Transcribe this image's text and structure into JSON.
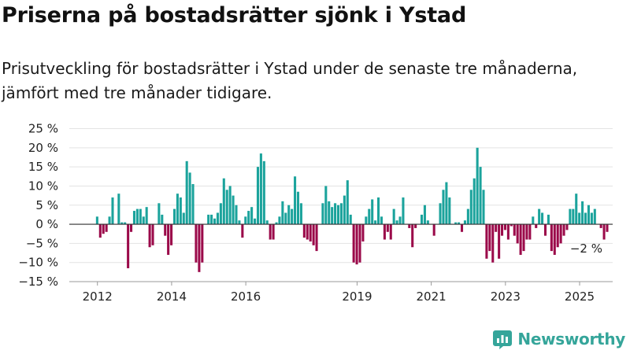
{
  "title": "Priserna på bostadsrätter sjönk i Ystad",
  "subtitle": "Prisutveckling för bostadsrätter i Ystad under de senaste tre månaderna, jämfört med tre månader tidigare.",
  "logo": {
    "name": "Newsworthy",
    "icon": "bar-chart-logo-icon"
  },
  "chart_data": {
    "type": "bar",
    "ylim": [
      -15,
      25
    ],
    "yticks": [
      -15,
      -10,
      -5,
      0,
      5,
      10,
      15,
      20,
      25
    ],
    "ytick_labels": [
      "−15 %",
      "−10 %",
      "−5 %",
      "0 %",
      "5 %",
      "10 %",
      "15 %",
      "20 %",
      "25 %"
    ],
    "xticks": [
      2012,
      2014,
      2016,
      2019,
      2021,
      2023,
      2025
    ],
    "grid": true,
    "colors": {
      "positive": "#1ba39c",
      "negative": "#9b0a4a"
    },
    "start": "2012-01",
    "series": [
      {
        "values": [
          2,
          -3.5,
          -2.5,
          -2,
          2,
          7,
          0,
          8,
          0.5,
          0.5,
          -11.5,
          -2,
          3.5,
          4,
          4,
          2,
          4.5,
          -6,
          -5.5,
          0,
          5.5,
          2.5,
          -3,
          -8,
          -5.5,
          4,
          8,
          7,
          3,
          16.5,
          13.5,
          10.5,
          -10,
          -12.5,
          -10,
          0,
          2.5,
          2.5,
          1.5,
          3,
          5.5,
          12,
          9,
          10,
          7.5,
          5,
          1,
          -3.5,
          2,
          3.5,
          4.5,
          1.5,
          15,
          18.5,
          16.5,
          1,
          -4,
          -4,
          0.5,
          2,
          6,
          3,
          5,
          4,
          12.5,
          8.5,
          5.5,
          -3.5,
          -4,
          -4.5,
          -5.5,
          -7,
          0,
          5.5,
          10,
          6,
          4.5,
          5.5,
          5,
          5.5,
          7.5,
          11.5,
          2.5,
          -10,
          -10.5,
          -10,
          -4.5,
          2,
          4,
          6.5,
          1,
          7,
          2,
          -4,
          -2,
          -4,
          4,
          1,
          2,
          7,
          0,
          -1,
          -6,
          -1,
          0,
          2.5,
          5,
          1,
          0,
          -3,
          0,
          5.5,
          9,
          11,
          7,
          0,
          0.5,
          0.5,
          -2,
          1,
          4,
          9,
          12,
          20,
          15,
          9,
          -9,
          -7,
          -10,
          -2,
          -9,
          -3,
          -1.5,
          -4,
          -0.5,
          -3,
          -5,
          -8,
          -7,
          -4,
          -4,
          2,
          -1,
          4,
          3,
          -3,
          2.5,
          -7,
          -8,
          -6,
          -5,
          -3,
          -1.5,
          4,
          4,
          8,
          3,
          6,
          3,
          5,
          3,
          4,
          0,
          -1,
          -4,
          -2
        ]
      }
    ],
    "annotation": {
      "text": "−2 %",
      "value": -2
    }
  }
}
